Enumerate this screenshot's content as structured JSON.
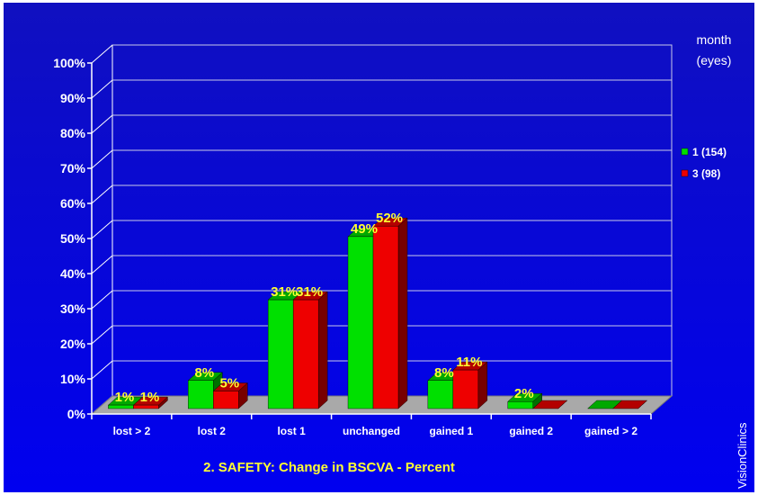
{
  "chart_data": {
    "type": "bar",
    "title": "2. SAFETY: Change in BSCVA - Percent",
    "categories": [
      "lost > 2",
      "lost 2",
      "lost 1",
      "unchanged",
      "gained 1",
      "gained 2",
      "gained > 2"
    ],
    "series": [
      {
        "name": "1 (154)",
        "color": "#00e000",
        "values": [
          1,
          8,
          31,
          49,
          8,
          2,
          0
        ],
        "labels": [
          "1%",
          "8%",
          "31%",
          "49%",
          "8%",
          "2%",
          ""
        ]
      },
      {
        "name": "3 (98)",
        "color": "#ee0000",
        "values": [
          1,
          5,
          31,
          52,
          11,
          0,
          0
        ],
        "labels": [
          "1%",
          "5%",
          "31%",
          "52%",
          "11%",
          "",
          ""
        ]
      }
    ],
    "ylim": [
      0,
      100
    ],
    "yticks": [
      "0%",
      "10%",
      "20%",
      "30%",
      "40%",
      "50%",
      "60%",
      "70%",
      "80%",
      "90%",
      "100%"
    ],
    "legend_title": [
      "month",
      "(eyes)"
    ],
    "legend_position": "right",
    "grid": true
  },
  "watermark": "VisionClinics"
}
